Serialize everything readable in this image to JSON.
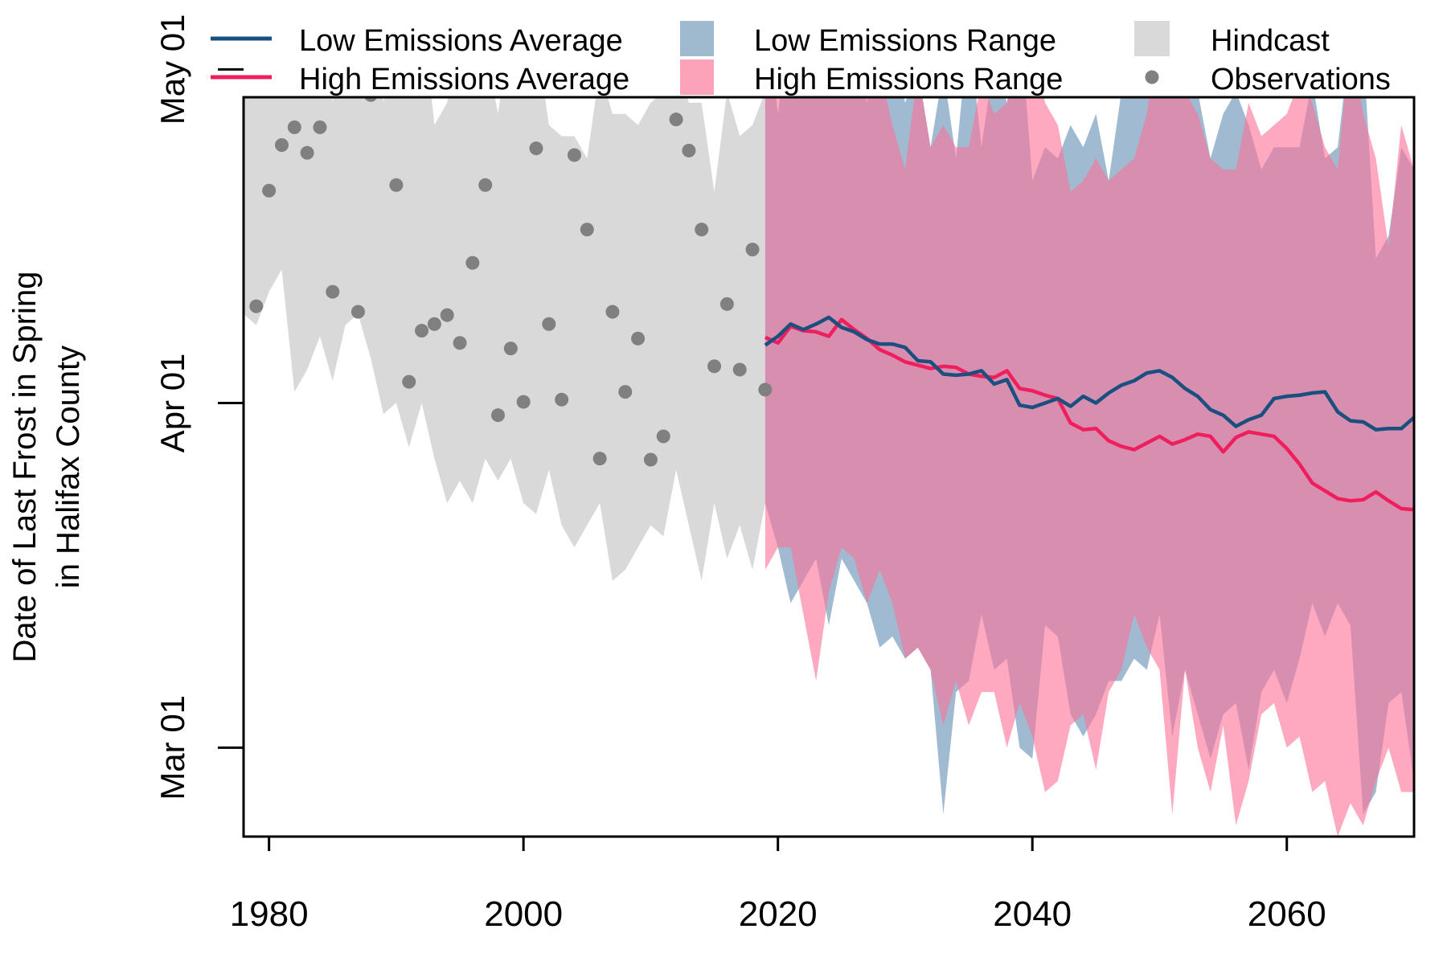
{
  "chart_data": {
    "type": "line",
    "title": "",
    "xlabel": "",
    "ylabel_lines": [
      "Date of Last Frost in Spring",
      "in Halifax County"
    ],
    "xlim": [
      1978,
      2070
    ],
    "ylim_day_of_year": [
      52,
      118.5
    ],
    "x_ticks": [
      1980,
      2000,
      2020,
      2040,
      2060
    ],
    "y_ticks": [
      {
        "day_of_year": 60,
        "label": "Mar 01"
      },
      {
        "day_of_year": 91,
        "label": "Apr 01"
      },
      {
        "day_of_year": 121,
        "label": "May 01"
      }
    ],
    "legend": {
      "placement": "top, above plot",
      "items": [
        {
          "label": "Low Emissions Average",
          "kind": "line",
          "color": "#1a5080"
        },
        {
          "label": "High Emissions Average",
          "kind": "line",
          "color": "#ef1f5e"
        },
        {
          "label": "Low Emissions Range",
          "kind": "fill",
          "color": "#9fb9cf"
        },
        {
          "label": "High Emissions Range",
          "kind": "fill",
          "color": "#fda3b9"
        },
        {
          "label": "Hindcast",
          "kind": "fill",
          "color": "#d9d9d9"
        },
        {
          "label": "Observations",
          "kind": "point",
          "color": "#808080"
        }
      ]
    },
    "colors": {
      "low_line": "#1a5080",
      "high_line": "#ef1f5e",
      "low_fill": "#5b89b0",
      "high_fill": "#fe6f96",
      "hindcast_fill": "#d9d9d9",
      "points": "#808080"
    },
    "hindcast": {
      "x": [
        1978,
        1979,
        1980,
        1981,
        1982,
        1983,
        1984,
        1985,
        1986,
        1987,
        1988,
        1989,
        1990,
        1991,
        1992,
        1993,
        1994,
        1995,
        1996,
        1997,
        1998,
        1999,
        2000,
        2001,
        2002,
        2003,
        2004,
        2005,
        2006,
        2007,
        2008,
        2009,
        2010,
        2011,
        2012,
        2013,
        2014,
        2015,
        2016,
        2017,
        2018,
        2019
      ],
      "upper": [
        128,
        127,
        135,
        129,
        126,
        136,
        135,
        118,
        133,
        125,
        128,
        118,
        127,
        130,
        127,
        116,
        118,
        126,
        122,
        123,
        117,
        125,
        119,
        124,
        116,
        115,
        115,
        113,
        121,
        117,
        117,
        116,
        118,
        119,
        122,
        118,
        118,
        110,
        119,
        115,
        116,
        119
      ],
      "lower": [
        99,
        98,
        101,
        103,
        92,
        94,
        97,
        93,
        98,
        99,
        95,
        90,
        91,
        87,
        91,
        86,
        82,
        84,
        82,
        86,
        84,
        86,
        82,
        81,
        85,
        80,
        78,
        80,
        82,
        75,
        76,
        78,
        80,
        79,
        85,
        80,
        75,
        82,
        77,
        80,
        76,
        82
      ]
    },
    "observations": {
      "x": [
        1979,
        1980,
        1981,
        1982,
        1983,
        1984,
        1985,
        1986,
        1987,
        1988,
        1989,
        1990,
        1991,
        1992,
        1993,
        1994,
        1995,
        1996,
        1997,
        1998,
        1999,
        2000,
        2001,
        2002,
        2003,
        2004,
        2005,
        2006,
        2007,
        2008,
        2009,
        2010,
        2011,
        2012,
        2013,
        2014,
        2015,
        2016,
        2017,
        2018,
        2019,
        2020
      ],
      "day_of_year": [
        99.7,
        110.1,
        114.2,
        115.8,
        113.5,
        115.8,
        101.0,
        124.1,
        99.2,
        118.7,
        128.0,
        110.6,
        92.9,
        97.5,
        98.1,
        98.9,
        96.4,
        103.6,
        110.6,
        89.9,
        95.9,
        91.1,
        113.9,
        98.1,
        91.3,
        113.3,
        106.6,
        86.0,
        99.2,
        92.0,
        96.8,
        85.9,
        88.0,
        116.5,
        113.7,
        106.6,
        94.3,
        99.9,
        94.0,
        104.8,
        92.2,
        129.6
      ]
    },
    "low_emissions": {
      "x": [
        2019,
        2020,
        2021,
        2022,
        2023,
        2024,
        2025,
        2026,
        2027,
        2028,
        2029,
        2030,
        2031,
        2032,
        2033,
        2034,
        2035,
        2036,
        2037,
        2038,
        2039,
        2040,
        2041,
        2042,
        2043,
        2044,
        2045,
        2046,
        2047,
        2048,
        2049,
        2050,
        2051,
        2052,
        2053,
        2054,
        2055,
        2056,
        2057,
        2058,
        2059,
        2060,
        2061,
        2062,
        2063,
        2064,
        2065,
        2066,
        2067,
        2068,
        2069,
        2070
      ],
      "average": [
        96.2,
        97.0,
        98.1,
        97.6,
        98.1,
        98.7,
        97.8,
        97.4,
        96.7,
        96.3,
        96.3,
        96.0,
        94.8,
        94.7,
        93.6,
        93.5,
        93.6,
        93.9,
        92.7,
        93.1,
        90.8,
        90.6,
        91.0,
        91.4,
        90.7,
        91.6,
        91.0,
        91.9,
        92.6,
        93.0,
        93.7,
        93.9,
        93.3,
        92.3,
        91.6,
        90.4,
        89.9,
        88.9,
        89.5,
        89.9,
        91.4,
        91.6,
        91.7,
        91.9,
        92.0,
        90.2,
        89.4,
        89.3,
        88.6,
        88.7,
        88.7,
        89.7
      ],
      "upper": [
        127,
        117,
        126,
        129,
        119,
        140,
        131,
        122,
        118,
        127,
        124,
        118,
        121,
        114,
        121,
        113,
        125,
        114,
        122,
        118,
        126,
        111,
        114,
        113,
        116,
        114,
        117,
        111,
        119,
        123,
        129,
        128,
        124,
        122,
        119,
        113,
        117,
        119,
        116,
        112,
        114,
        114,
        114,
        120,
        113,
        114,
        124,
        123,
        104,
        106,
        114,
        112
      ],
      "lower": [
        82,
        78,
        73,
        75,
        77,
        71,
        77,
        75,
        73,
        69,
        70,
        68,
        69,
        67,
        54,
        65,
        66,
        72,
        67,
        68,
        60,
        59,
        71,
        70,
        63,
        61,
        63,
        66,
        66,
        68,
        67,
        72,
        61,
        67,
        63,
        59,
        63,
        64,
        58,
        65,
        67,
        64,
        68,
        73,
        70,
        73,
        71,
        54,
        56,
        64,
        65,
        57
      ]
    },
    "high_emissions": {
      "x": [
        2019,
        2020,
        2021,
        2022,
        2023,
        2024,
        2025,
        2026,
        2027,
        2028,
        2029,
        2030,
        2031,
        2032,
        2033,
        2034,
        2035,
        2036,
        2037,
        2038,
        2039,
        2040,
        2041,
        2042,
        2043,
        2044,
        2045,
        2046,
        2047,
        2048,
        2049,
        2050,
        2051,
        2052,
        2053,
        2054,
        2055,
        2056,
        2057,
        2058,
        2059,
        2060,
        2061,
        2062,
        2063,
        2064,
        2065,
        2066,
        2067,
        2068,
        2069,
        2070
      ],
      "average": [
        96.9,
        96.4,
        97.9,
        97.5,
        97.4,
        97.0,
        98.5,
        97.6,
        96.8,
        95.8,
        95.3,
        94.7,
        94.4,
        94.1,
        94.3,
        94.2,
        93.6,
        93.4,
        93.3,
        93.9,
        92.3,
        92.1,
        91.7,
        91.4,
        89.2,
        88.6,
        88.7,
        87.6,
        87.1,
        86.8,
        87.4,
        88.0,
        87.3,
        87.7,
        88.2,
        88.0,
        86.6,
        87.9,
        88.4,
        88.2,
        88.0,
        86.9,
        85.5,
        83.8,
        83.1,
        82.4,
        82.2,
        82.3,
        83.0,
        82.2,
        81.5,
        81.4
      ],
      "upper": [
        122,
        124,
        126,
        122,
        126,
        124,
        130,
        127,
        121,
        121,
        116,
        112,
        121,
        114,
        116,
        114,
        114,
        120,
        117,
        118,
        123,
        124,
        118,
        116,
        110,
        111,
        113,
        111,
        112,
        113,
        117,
        126,
        122,
        119,
        117,
        113,
        112,
        112,
        118,
        115,
        116,
        117,
        120,
        118,
        114,
        112,
        124,
        117,
        113,
        105,
        116,
        112
      ],
      "lower": [
        76,
        78,
        78,
        72,
        66,
        74,
        78,
        77,
        73,
        76,
        73,
        68,
        69,
        67,
        62,
        66,
        62,
        65,
        65,
        60,
        64,
        61,
        56,
        57,
        62,
        63,
        58,
        65,
        67,
        72,
        69,
        67,
        54,
        67,
        60,
        56,
        62,
        53,
        57,
        63,
        64,
        60,
        61,
        56,
        57,
        52,
        55,
        53,
        57,
        60,
        56,
        56
      ]
    }
  }
}
